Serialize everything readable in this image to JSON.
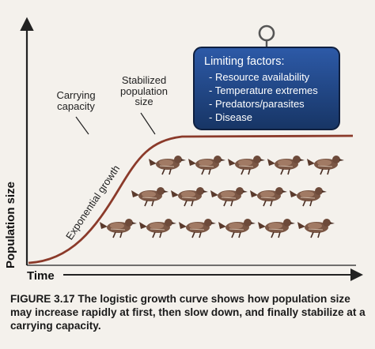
{
  "diagram": {
    "annotations": {
      "carrying_capacity": "Carrying capacity",
      "stabilized": "Stabilized population size",
      "exponential": "Exponential growth"
    },
    "axes": {
      "y_label": "Population size",
      "x_label": "Time"
    },
    "limiting_factors": {
      "title": "Limiting factors:",
      "items": [
        "Resource availability",
        "Temperature extremes",
        "Predators/parasites",
        "Disease"
      ]
    },
    "icons": [
      "bird-icon",
      "sign-ring-icon"
    ],
    "colors": {
      "curve": "#8b3a2a",
      "sign": "#1f3f7a",
      "axis": "#222222"
    }
  },
  "caption": {
    "label": "FIGURE 3.17",
    "text": "The logistic growth curve shows how population size may increase rapidly at first, then slow down, and finally stabilize at a carrying capacity."
  }
}
